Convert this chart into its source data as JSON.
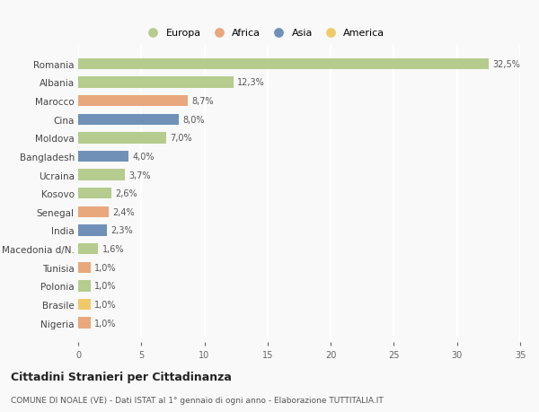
{
  "categories": [
    "Romania",
    "Albania",
    "Marocco",
    "Cina",
    "Moldova",
    "Bangladesh",
    "Ucraina",
    "Kosovo",
    "Senegal",
    "India",
    "Macedonia d/N.",
    "Tunisia",
    "Polonia",
    "Brasile",
    "Nigeria"
  ],
  "values": [
    32.5,
    12.3,
    8.7,
    8.0,
    7.0,
    4.0,
    3.7,
    2.6,
    2.4,
    2.3,
    1.6,
    1.0,
    1.0,
    1.0,
    1.0
  ],
  "labels": [
    "32,5%",
    "12,3%",
    "8,7%",
    "8,0%",
    "7,0%",
    "4,0%",
    "3,7%",
    "2,6%",
    "2,4%",
    "2,3%",
    "1,6%",
    "1,0%",
    "1,0%",
    "1,0%",
    "1,0%"
  ],
  "continents": [
    "Europa",
    "Europa",
    "Africa",
    "Asia",
    "Europa",
    "Asia",
    "Europa",
    "Europa",
    "Africa",
    "Asia",
    "Europa",
    "Africa",
    "Europa",
    "America",
    "Africa"
  ],
  "colors": {
    "Europa": "#b5cc8e",
    "Africa": "#e8a87c",
    "Asia": "#7090b8",
    "America": "#f0c96a"
  },
  "legend_order": [
    "Europa",
    "Africa",
    "Asia",
    "America"
  ],
  "title": "Cittadini Stranieri per Cittadinanza",
  "subtitle": "COMUNE DI NOALE (VE) - Dati ISTAT al 1° gennaio di ogni anno - Elaborazione TUTTITALIA.IT",
  "xlim": [
    0,
    35
  ],
  "xticks": [
    0,
    5,
    10,
    15,
    20,
    25,
    30,
    35
  ],
  "background_color": "#f9f9f9",
  "grid_color": "#ffffff",
  "bar_height": 0.6
}
